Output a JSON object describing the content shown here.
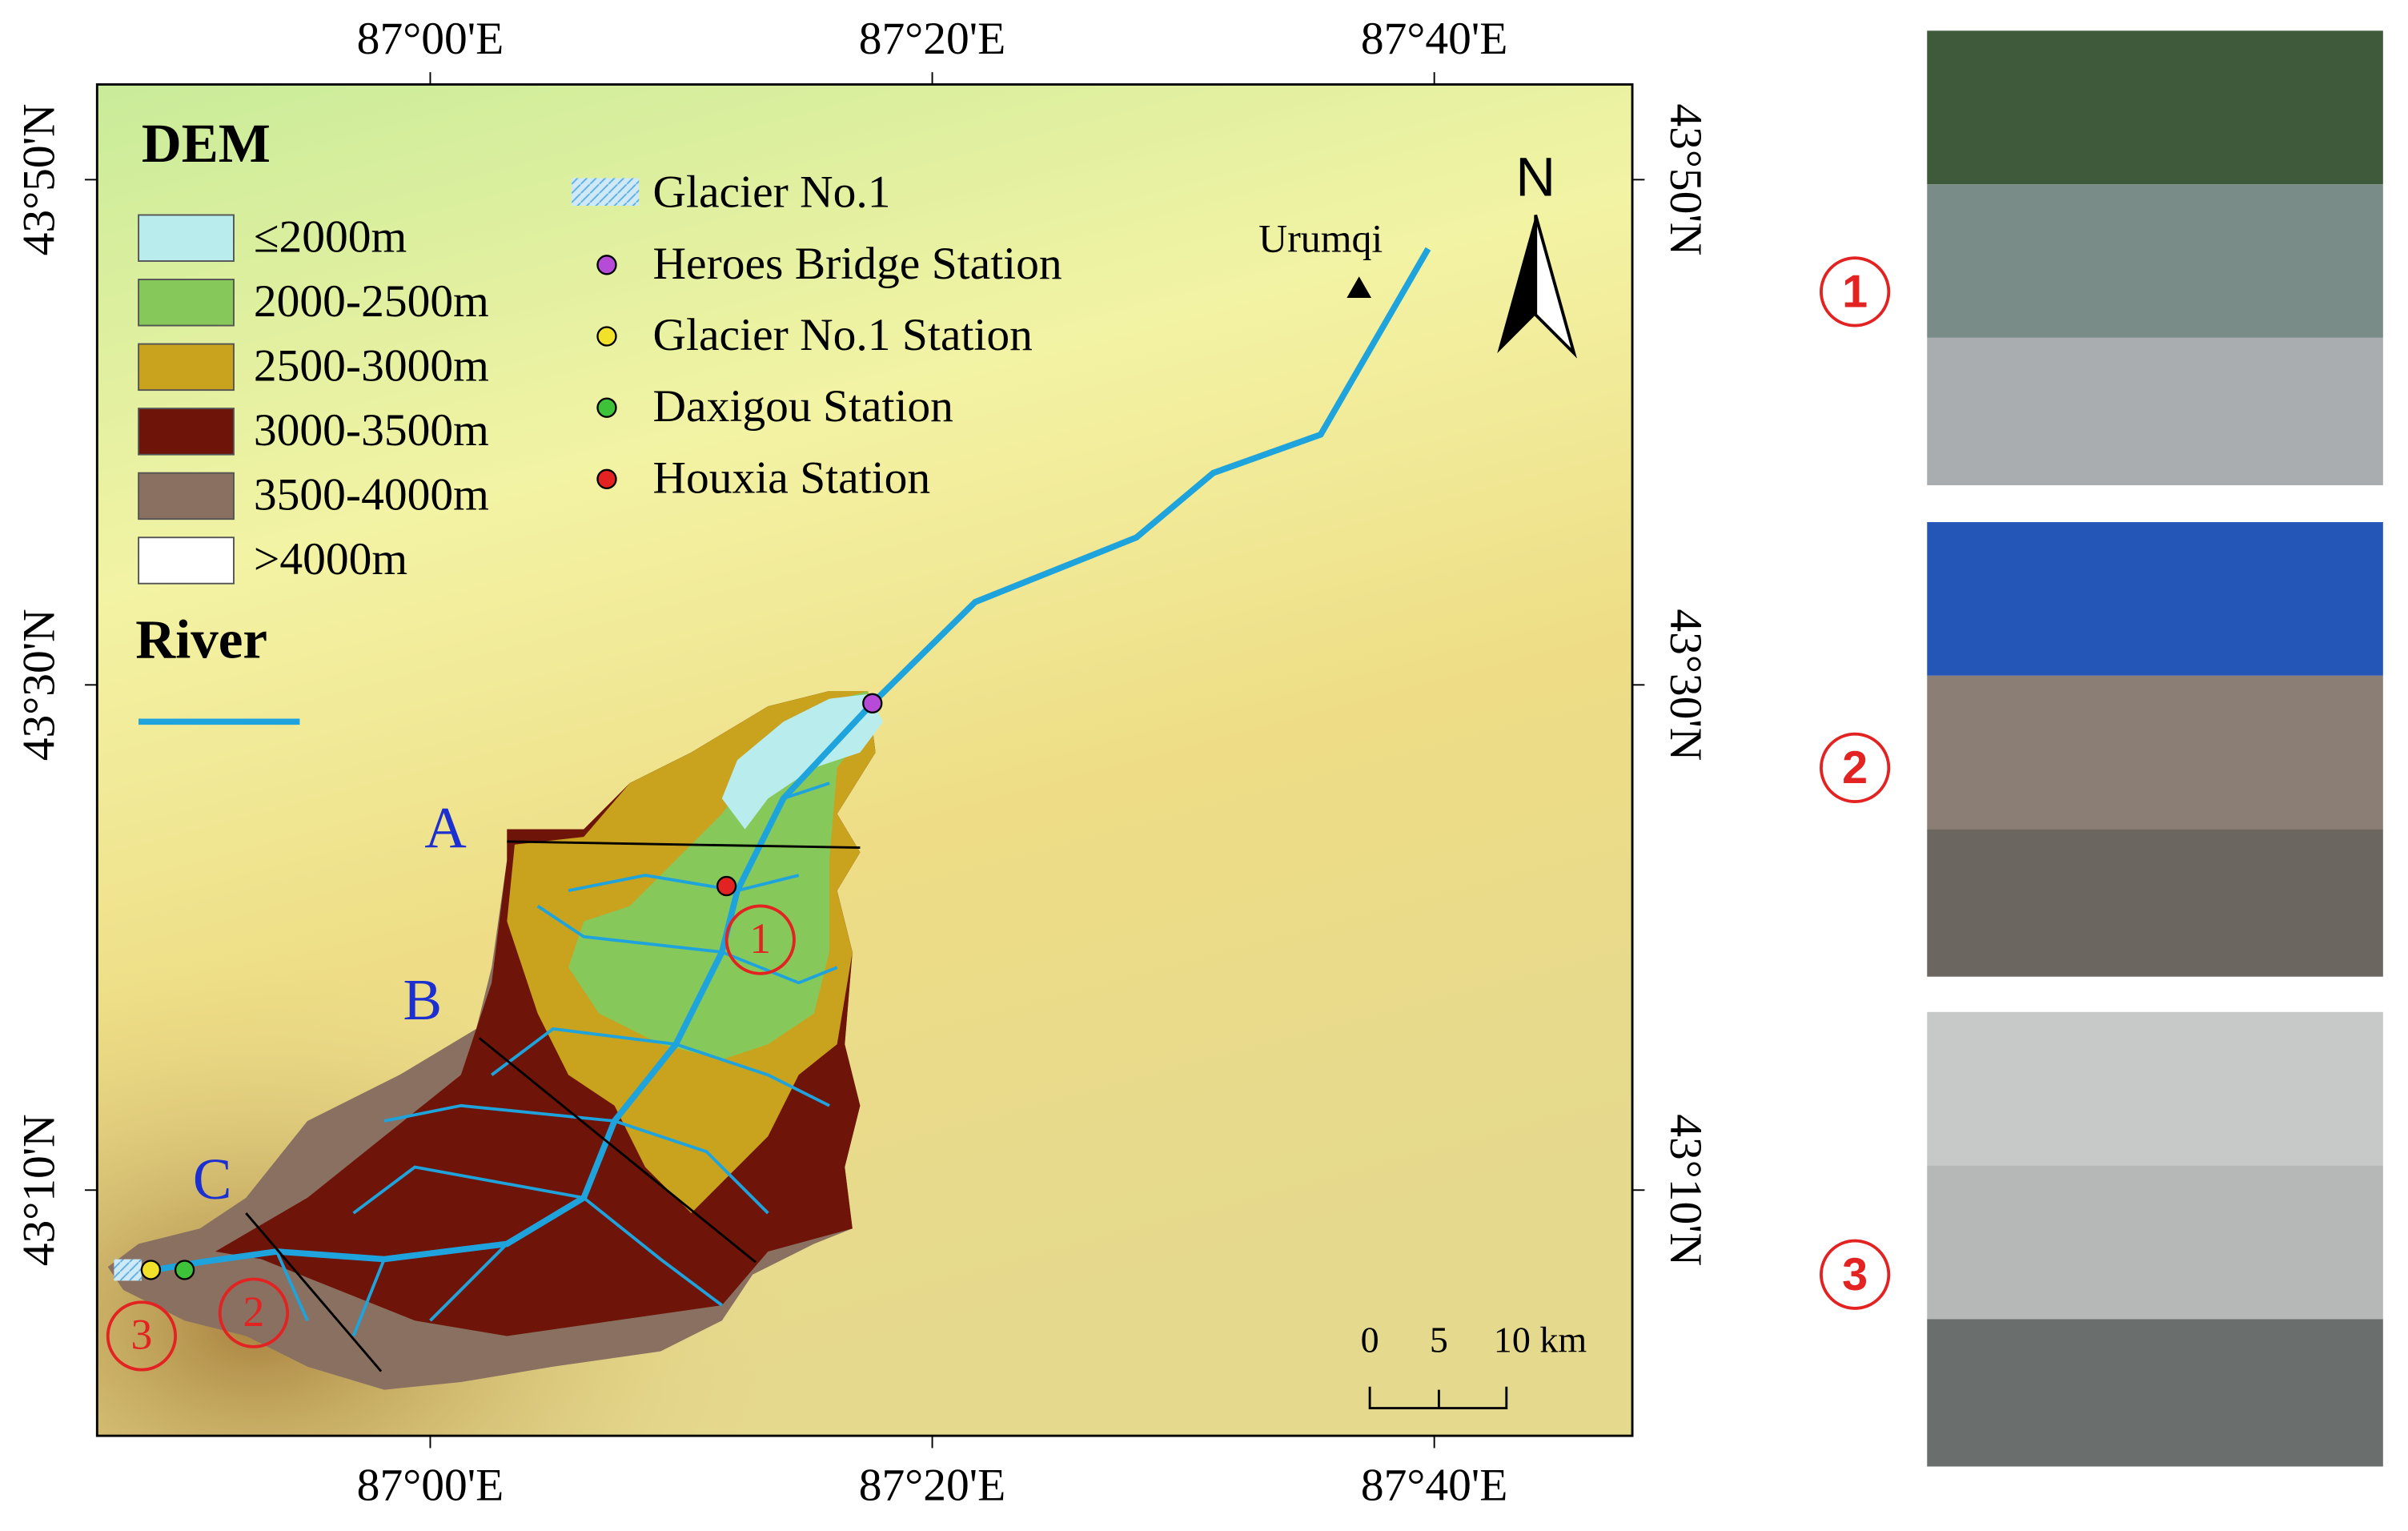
{
  "map": {
    "lon_ticks": [
      "87°00'E",
      "87°20'E",
      "87°40'E"
    ],
    "lat_ticks": [
      "43°50'N",
      "43°30'N",
      "43°10'N"
    ],
    "dem_legend": {
      "title": "DEM",
      "classes": [
        "≤2000m",
        "2000-2500m",
        "2500-3000m",
        "3000-3500m",
        "3500-4000m",
        ">4000m"
      ]
    },
    "river_legend": {
      "title": "River"
    },
    "features": [
      "Glacier No.1",
      "Heroes Bridge Station",
      "Glacier No.1 Station",
      "Daxigou Station",
      "Houxia Station"
    ],
    "city": "Urumqi",
    "north": "N",
    "sections": [
      "A",
      "B",
      "C"
    ],
    "scale_bar": [
      "0",
      "5",
      "10 km"
    ],
    "site_markers": [
      "1",
      "2",
      "3"
    ]
  },
  "photos": [
    {
      "label": "1"
    },
    {
      "label": "2"
    },
    {
      "label": "3"
    }
  ]
}
